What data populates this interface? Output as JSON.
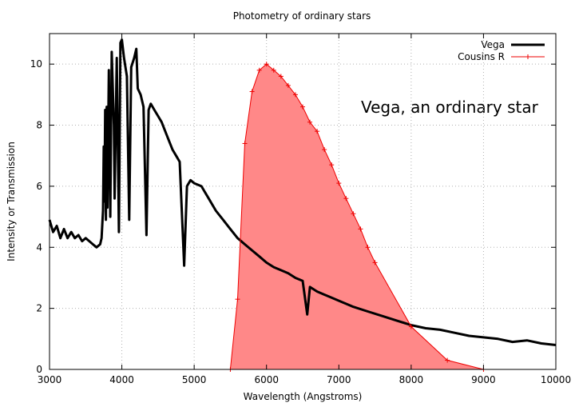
{
  "chart_data": {
    "type": "line",
    "title": "Photometry of ordinary stars",
    "xlabel": "Wavelength (Angstroms)",
    "ylabel": "Intensity or Transmission",
    "xlim": [
      3000,
      10000
    ],
    "ylim": [
      0,
      11
    ],
    "x_ticks": [
      3000,
      4000,
      5000,
      6000,
      7000,
      8000,
      9000,
      10000
    ],
    "y_ticks": [
      0,
      2,
      4,
      6,
      8,
      10
    ],
    "grid": true,
    "legend_position": "top-right",
    "annotation": "Vega, an ordinary star",
    "series": [
      {
        "name": "Vega",
        "color": "#000000",
        "style": "line",
        "points": [
          [
            3000,
            4.9
          ],
          [
            3050,
            4.5
          ],
          [
            3100,
            4.7
          ],
          [
            3150,
            4.3
          ],
          [
            3200,
            4.6
          ],
          [
            3250,
            4.3
          ],
          [
            3300,
            4.5
          ],
          [
            3350,
            4.3
          ],
          [
            3400,
            4.4
          ],
          [
            3450,
            4.2
          ],
          [
            3500,
            4.3
          ],
          [
            3550,
            4.2
          ],
          [
            3600,
            4.1
          ],
          [
            3650,
            4.0
          ],
          [
            3700,
            4.1
          ],
          [
            3720,
            4.3
          ],
          [
            3740,
            5.2
          ],
          [
            3750,
            7.3
          ],
          [
            3760,
            5.5
          ],
          [
            3770,
            8.5
          ],
          [
            3780,
            4.9
          ],
          [
            3790,
            8.6
          ],
          [
            3800,
            5.3
          ],
          [
            3820,
            9.8
          ],
          [
            3840,
            5.0
          ],
          [
            3860,
            10.4
          ],
          [
            3890,
            8.0
          ],
          [
            3900,
            5.6
          ],
          [
            3930,
            10.2
          ],
          [
            3960,
            4.5
          ],
          [
            3980,
            10.7
          ],
          [
            4000,
            10.8
          ],
          [
            4030,
            10.2
          ],
          [
            4070,
            9.6
          ],
          [
            4102,
            4.9
          ],
          [
            4130,
            9.9
          ],
          [
            4170,
            10.2
          ],
          [
            4200,
            10.5
          ],
          [
            4220,
            9.2
          ],
          [
            4260,
            9.0
          ],
          [
            4300,
            8.6
          ],
          [
            4340,
            4.4
          ],
          [
            4370,
            8.5
          ],
          [
            4400,
            8.7
          ],
          [
            4450,
            8.5
          ],
          [
            4500,
            8.3
          ],
          [
            4550,
            8.1
          ],
          [
            4600,
            7.8
          ],
          [
            4650,
            7.5
          ],
          [
            4700,
            7.2
          ],
          [
            4750,
            7.0
          ],
          [
            4800,
            6.8
          ],
          [
            4861,
            3.4
          ],
          [
            4900,
            6.0
          ],
          [
            4950,
            6.2
          ],
          [
            5000,
            6.1
          ],
          [
            5100,
            6.0
          ],
          [
            5200,
            5.6
          ],
          [
            5300,
            5.2
          ],
          [
            5400,
            4.9
          ],
          [
            5500,
            4.6
          ],
          [
            5600,
            4.3
          ],
          [
            5700,
            4.1
          ],
          [
            5800,
            3.9
          ],
          [
            5900,
            3.7
          ],
          [
            6000,
            3.5
          ],
          [
            6100,
            3.35
          ],
          [
            6200,
            3.25
          ],
          [
            6300,
            3.15
          ],
          [
            6400,
            3.0
          ],
          [
            6500,
            2.9
          ],
          [
            6563,
            1.8
          ],
          [
            6600,
            2.7
          ],
          [
            6700,
            2.55
          ],
          [
            6800,
            2.45
          ],
          [
            6900,
            2.35
          ],
          [
            7000,
            2.25
          ],
          [
            7200,
            2.05
          ],
          [
            7400,
            1.9
          ],
          [
            7600,
            1.75
          ],
          [
            7800,
            1.6
          ],
          [
            8000,
            1.45
          ],
          [
            8200,
            1.35
          ],
          [
            8400,
            1.3
          ],
          [
            8600,
            1.2
          ],
          [
            8800,
            1.1
          ],
          [
            9000,
            1.05
          ],
          [
            9200,
            1.0
          ],
          [
            9400,
            0.9
          ],
          [
            9600,
            0.95
          ],
          [
            9800,
            0.85
          ],
          [
            10000,
            0.8
          ]
        ]
      },
      {
        "name": "Cousins R",
        "color": "#ee0000",
        "fill": "#ff8888",
        "style": "linespoints",
        "points": [
          [
            5500,
            0.0
          ],
          [
            5600,
            2.3
          ],
          [
            5700,
            7.4
          ],
          [
            5800,
            9.1
          ],
          [
            5900,
            9.8
          ],
          [
            6000,
            10.0
          ],
          [
            6100,
            9.8
          ],
          [
            6200,
            9.6
          ],
          [
            6300,
            9.3
          ],
          [
            6400,
            9.0
          ],
          [
            6500,
            8.6
          ],
          [
            6600,
            8.1
          ],
          [
            6700,
            7.8
          ],
          [
            6800,
            7.2
          ],
          [
            6900,
            6.7
          ],
          [
            7000,
            6.1
          ],
          [
            7100,
            5.6
          ],
          [
            7200,
            5.1
          ],
          [
            7300,
            4.6
          ],
          [
            7400,
            4.0
          ],
          [
            7500,
            3.5
          ],
          [
            8000,
            1.4
          ],
          [
            8500,
            0.3
          ],
          [
            9000,
            0.0
          ]
        ]
      }
    ]
  }
}
